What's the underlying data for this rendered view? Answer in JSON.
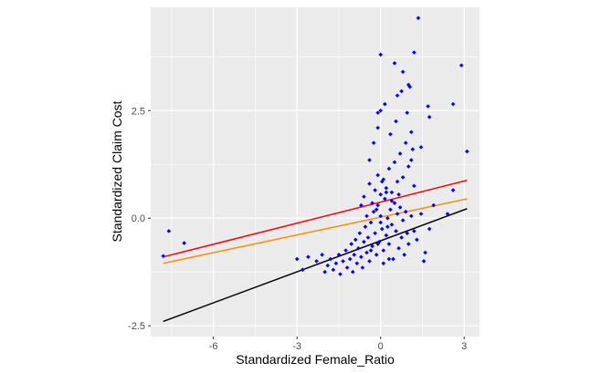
{
  "chart_data": {
    "type": "scatter",
    "title": "",
    "xlabel": "Standardized Female_Ratio",
    "ylabel": "Standardized Claim Cost",
    "xlim": [
      -8.25,
      3.55
    ],
    "ylim": [
      -2.75,
      4.9
    ],
    "x_ticks": [
      -6,
      -3,
      0,
      3
    ],
    "x_tick_labels": [
      "-6",
      "-3",
      "0",
      "3"
    ],
    "y_ticks": [
      -2.5,
      0.0,
      2.5
    ],
    "y_tick_labels": [
      "-2.5",
      "0.0",
      "2.5"
    ],
    "grid": true,
    "panel_background": "#ebebeb",
    "grid_color": "#ffffff",
    "point_color": "#0000ff",
    "points": [
      [
        -7.8,
        -0.88
      ],
      [
        -7.6,
        -0.3
      ],
      [
        -7.05,
        -0.58
      ],
      [
        -3.0,
        -0.95
      ],
      [
        -2.8,
        -1.2
      ],
      [
        -2.6,
        -0.9
      ],
      [
        -2.3,
        -1.0
      ],
      [
        -2.1,
        -0.85
      ],
      [
        -2.0,
        -1.25
      ],
      [
        -1.9,
        -1.1
      ],
      [
        -1.8,
        -0.95
      ],
      [
        -1.7,
        -1.2
      ],
      [
        -1.6,
        -1.05
      ],
      [
        -1.5,
        -0.85
      ],
      [
        -1.45,
        -1.3
      ],
      [
        -1.35,
        -1.0
      ],
      [
        -1.25,
        -0.75
      ],
      [
        -1.2,
        -1.15
      ],
      [
        -1.1,
        -0.95
      ],
      [
        -1.05,
        -0.6
      ],
      [
        -1.0,
        -1.25
      ],
      [
        -0.95,
        -0.85
      ],
      [
        -0.9,
        -0.5
      ],
      [
        -0.85,
        -1.05
      ],
      [
        -0.8,
        -0.7
      ],
      [
        -0.75,
        -0.35
      ],
      [
        -0.7,
        -0.9
      ],
      [
        -0.65,
        -1.15
      ],
      [
        -0.6,
        -0.55
      ],
      [
        -0.55,
        -0.2
      ],
      [
        -0.5,
        -0.8
      ],
      [
        -0.45,
        -0.45
      ],
      [
        -0.4,
        -1.0
      ],
      [
        -0.35,
        -0.1
      ],
      [
        -0.3,
        -0.65
      ],
      [
        -0.25,
        0.15
      ],
      [
        -0.2,
        -0.35
      ],
      [
        -0.15,
        -0.85
      ],
      [
        -0.1,
        0.3
      ],
      [
        -0.05,
        -0.55
      ],
      [
        0.0,
        0.05
      ],
      [
        0.05,
        -0.25
      ],
      [
        0.1,
        -0.75
      ],
      [
        0.15,
        0.45
      ],
      [
        0.2,
        -0.4
      ],
      [
        0.25,
        0.0
      ],
      [
        0.3,
        -0.6
      ],
      [
        0.35,
        0.2
      ],
      [
        0.4,
        -0.15
      ],
      [
        0.45,
        -0.95
      ],
      [
        0.5,
        0.35
      ],
      [
        0.55,
        -0.3
      ],
      [
        0.6,
        0.1
      ],
      [
        0.65,
        -0.7
      ],
      [
        0.7,
        0.25
      ],
      [
        0.75,
        -0.45
      ],
      [
        0.8,
        -0.05
      ],
      [
        0.85,
        -0.85
      ],
      [
        0.9,
        0.15
      ],
      [
        0.95,
        -0.35
      ],
      [
        1.0,
        -0.6
      ],
      [
        1.1,
        0.05
      ],
      [
        1.2,
        -0.3
      ],
      [
        1.3,
        -0.5
      ],
      [
        1.45,
        0.1
      ],
      [
        1.6,
        -0.8
      ],
      [
        1.75,
        -0.25
      ],
      [
        1.9,
        0.3
      ],
      [
        -0.6,
        0.5
      ],
      [
        -0.4,
        0.8
      ],
      [
        -0.3,
        0.35
      ],
      [
        -0.2,
        0.65
      ],
      [
        -0.1,
        1.0
      ],
      [
        0.0,
        0.55
      ],
      [
        0.1,
        0.9
      ],
      [
        0.2,
        0.7
      ],
      [
        0.3,
        1.15
      ],
      [
        0.4,
        0.6
      ],
      [
        0.5,
        1.3
      ],
      [
        0.6,
        0.85
      ],
      [
        0.7,
        1.5
      ],
      [
        0.8,
        0.95
      ],
      [
        0.9,
        1.75
      ],
      [
        1.0,
        1.2
      ],
      [
        1.1,
        2.0
      ],
      [
        1.2,
        0.75
      ],
      [
        -0.4,
        1.35
      ],
      [
        -0.25,
        1.75
      ],
      [
        -0.1,
        2.1
      ],
      [
        0.0,
        2.5
      ],
      [
        0.15,
        2.65
      ],
      [
        0.35,
        1.95
      ],
      [
        0.55,
        2.25
      ],
      [
        0.75,
        2.95
      ],
      [
        0.95,
        2.45
      ],
      [
        1.05,
        3.05
      ],
      [
        1.15,
        1.6
      ],
      [
        -0.1,
        2.45
      ],
      [
        0.0,
        3.8
      ],
      [
        0.5,
        3.6
      ],
      [
        0.6,
        2.85
      ],
      [
        0.8,
        3.4
      ],
      [
        1.0,
        3.1
      ],
      [
        1.1,
        1.35
      ],
      [
        1.2,
        3.85
      ],
      [
        1.35,
        4.65
      ],
      [
        1.45,
        1.65
      ],
      [
        1.7,
        2.6
      ],
      [
        1.75,
        2.35
      ],
      [
        2.6,
        2.65
      ],
      [
        2.9,
        3.55
      ],
      [
        3.1,
        1.55
      ],
      [
        2.4,
        0.1
      ],
      [
        2.6,
        0.65
      ],
      [
        1.55,
        -1.0
      ],
      [
        0.0,
        -0.1
      ],
      [
        -0.1,
        -0.6
      ],
      [
        0.2,
        0.6
      ],
      [
        0.3,
        -0.95
      ],
      [
        -0.5,
        0.05
      ],
      [
        -0.7,
        0.3
      ],
      [
        0.4,
        0.4
      ],
      [
        0.05,
        0.85
      ],
      [
        -0.15,
        0.2
      ],
      [
        0.65,
        0.55
      ],
      [
        0.25,
        -0.2
      ],
      [
        -0.35,
        -0.75
      ],
      [
        0.1,
        -1.05
      ]
    ],
    "lines": [
      {
        "color": "#ff0000",
        "x": [
          -7.8,
          3.1
        ],
        "y": [
          -0.9,
          0.88
        ]
      },
      {
        "color": "#ff8c00",
        "x": [
          -7.8,
          3.1
        ],
        "y": [
          -1.05,
          0.45
        ]
      },
      {
        "color": "#000000",
        "x": [
          -7.8,
          3.1
        ],
        "y": [
          -2.4,
          0.22
        ]
      }
    ]
  }
}
